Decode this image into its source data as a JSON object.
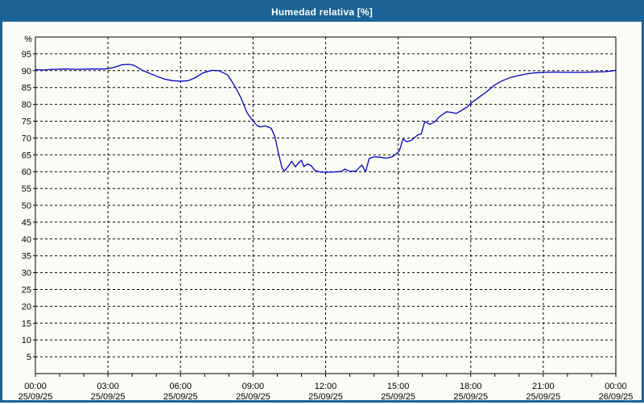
{
  "window": {
    "title": "Humedad relativa [%]",
    "titlebar_color": "#1B6396",
    "border_color": "#1B6396",
    "background_color": "#FCFCF6"
  },
  "chart_data": {
    "type": "line",
    "title": "Humedad relativa [%]",
    "unit_label": "%",
    "grid": "dashed",
    "legend": "none",
    "grid_color": "#000000",
    "text_color": "#000000",
    "x_axis": {
      "span_hours": 24,
      "minor_tick_every_hours": 1,
      "gridline_every_hours": 3,
      "ticks": [
        {
          "hour": 0,
          "time": "00:00",
          "date": "25/09/25"
        },
        {
          "hour": 3,
          "time": "03:00",
          "date": "25/09/25"
        },
        {
          "hour": 6,
          "time": "06:00",
          "date": "25/09/25"
        },
        {
          "hour": 9,
          "time": "09:00",
          "date": "25/09/25"
        },
        {
          "hour": 12,
          "time": "12:00",
          "date": "25/09/25"
        },
        {
          "hour": 15,
          "time": "15:00",
          "date": "25/09/25"
        },
        {
          "hour": 18,
          "time": "18:00",
          "date": "25/09/25"
        },
        {
          "hour": 21,
          "time": "21:00",
          "date": "25/09/25"
        },
        {
          "hour": 24,
          "time": "00:00",
          "date": "26/09/25"
        }
      ]
    },
    "y_axis": {
      "unit": "%",
      "min": 0,
      "max": 100,
      "tick_step": 5,
      "ticks": [
        95,
        90,
        85,
        80,
        75,
        70,
        65,
        60,
        55,
        50,
        45,
        40,
        35,
        30,
        25,
        20,
        15,
        10,
        5
      ]
    },
    "series": [
      {
        "name": "Humedad relativa",
        "color": "#0000CC",
        "points": [
          [
            0.0,
            90.3
          ],
          [
            0.3,
            90.2
          ],
          [
            0.7,
            90.4
          ],
          [
            1.2,
            90.5
          ],
          [
            1.7,
            90.4
          ],
          [
            2.2,
            90.5
          ],
          [
            2.7,
            90.5
          ],
          [
            3.0,
            90.6
          ],
          [
            3.3,
            91.1
          ],
          [
            3.6,
            91.8
          ],
          [
            3.9,
            91.9
          ],
          [
            4.1,
            91.5
          ],
          [
            4.45,
            90.0
          ],
          [
            4.8,
            89.0
          ],
          [
            5.1,
            88.1
          ],
          [
            5.4,
            87.4
          ],
          [
            5.7,
            87.0
          ],
          [
            6.0,
            86.9
          ],
          [
            6.3,
            87.0
          ],
          [
            6.6,
            87.9
          ],
          [
            6.95,
            89.4
          ],
          [
            7.3,
            90.1
          ],
          [
            7.6,
            90.0
          ],
          [
            7.95,
            88.7
          ],
          [
            8.1,
            87.1
          ],
          [
            8.3,
            84.7
          ],
          [
            8.5,
            81.9
          ],
          [
            8.75,
            77.5
          ],
          [
            9.0,
            75.0
          ],
          [
            9.15,
            73.8
          ],
          [
            9.3,
            73.3
          ],
          [
            9.5,
            73.6
          ],
          [
            9.75,
            72.9
          ],
          [
            9.9,
            70.5
          ],
          [
            10.05,
            65.5
          ],
          [
            10.2,
            61.0
          ],
          [
            10.3,
            60.2
          ],
          [
            10.5,
            62.0
          ],
          [
            10.6,
            63.1
          ],
          [
            10.75,
            61.4
          ],
          [
            10.9,
            62.8
          ],
          [
            11.0,
            63.4
          ],
          [
            11.1,
            61.5
          ],
          [
            11.25,
            62.3
          ],
          [
            11.4,
            61.8
          ],
          [
            11.55,
            60.4
          ],
          [
            11.75,
            59.9
          ],
          [
            12.0,
            59.8
          ],
          [
            12.4,
            59.9
          ],
          [
            12.65,
            60.1
          ],
          [
            12.8,
            60.8
          ],
          [
            13.0,
            60.1
          ],
          [
            13.25,
            60.2
          ],
          [
            13.5,
            62.0
          ],
          [
            13.65,
            59.9
          ],
          [
            13.8,
            63.9
          ],
          [
            14.0,
            64.4
          ],
          [
            14.25,
            64.3
          ],
          [
            14.5,
            64.0
          ],
          [
            14.75,
            64.4
          ],
          [
            14.9,
            65.2
          ],
          [
            15.05,
            66.2
          ],
          [
            15.2,
            69.7
          ],
          [
            15.35,
            68.9
          ],
          [
            15.55,
            69.3
          ],
          [
            15.8,
            70.9
          ],
          [
            15.95,
            71.2
          ],
          [
            16.1,
            74.9
          ],
          [
            16.3,
            74.1
          ],
          [
            16.5,
            74.7
          ],
          [
            16.7,
            76.3
          ],
          [
            17.0,
            77.8
          ],
          [
            17.2,
            77.6
          ],
          [
            17.4,
            77.3
          ],
          [
            17.65,
            78.3
          ],
          [
            17.85,
            79.2
          ],
          [
            18.0,
            80.3
          ],
          [
            18.3,
            81.9
          ],
          [
            18.65,
            83.7
          ],
          [
            19.0,
            85.8
          ],
          [
            19.3,
            87.0
          ],
          [
            19.65,
            88.0
          ],
          [
            20.0,
            88.6
          ],
          [
            20.35,
            89.1
          ],
          [
            20.7,
            89.4
          ],
          [
            21.0,
            89.5
          ],
          [
            21.5,
            89.6
          ],
          [
            22.0,
            89.5
          ],
          [
            22.5,
            89.5
          ],
          [
            23.0,
            89.6
          ],
          [
            23.5,
            89.7
          ],
          [
            23.8,
            89.9
          ],
          [
            24.0,
            90.1
          ]
        ]
      }
    ]
  }
}
